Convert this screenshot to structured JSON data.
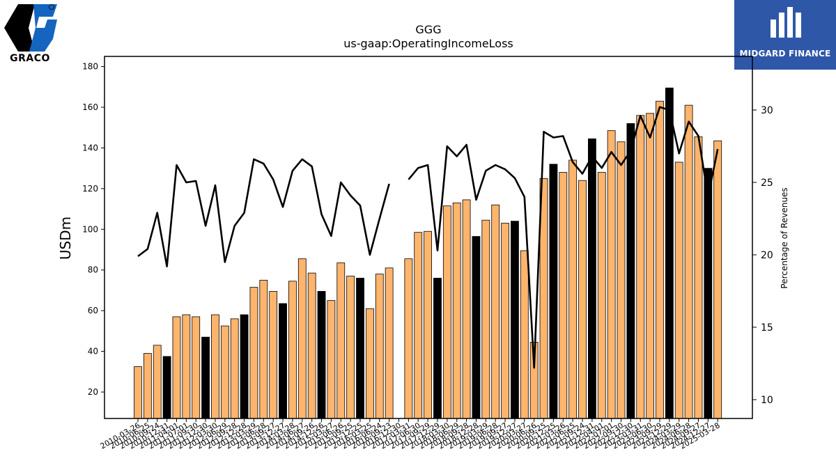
{
  "logos": {
    "left": {
      "name": "GRACO"
    },
    "right": {
      "name": "MIDGARD FINANCE"
    }
  },
  "chart_data": {
    "type": "bar",
    "title": "GGG",
    "subtitle": "us-gaap:OperatingIncomeLoss",
    "ylabel": "USDm",
    "y2label": "Percentage of Revenues",
    "ylim": [
      7,
      185
    ],
    "y2lim": [
      8.7,
      33.7
    ],
    "yticks": [
      20,
      40,
      60,
      80,
      100,
      120,
      140,
      160,
      180
    ],
    "y2ticks": [
      10,
      15,
      20,
      25,
      30
    ],
    "colors": {
      "quarter": "#fdb46c",
      "fiscal_year_end": "#000000",
      "line": "#000000"
    },
    "categories": [
      "2010-03-26",
      "2010-06-25",
      "2010-09-24",
      "2010-12-31",
      "2011-04-01",
      "2011-07-01",
      "2011-09-30",
      "2011-12-30",
      "2012-03-30",
      "2012-06-29",
      "2012-09-28",
      "2012-12-28",
      "2013-03-29",
      "2013-06-28",
      "2013-09-27",
      "2013-12-27",
      "2014-03-28",
      "2014-06-27",
      "2014-09-26",
      "2014-12-26",
      "2015-03-27",
      "2015-06-26",
      "2015-09-25",
      "2015-12-25",
      "2016-03-25",
      "2016-06-24",
      "2016-09-23",
      "2016-12-30",
      "2017-03-31",
      "2017-06-30",
      "2017-09-29",
      "2017-12-29",
      "2018-03-30",
      "2018-06-29",
      "2018-09-28",
      "2018-12-28",
      "2019-03-29",
      "2019-06-28",
      "2019-09-27",
      "2019-12-27",
      "2020-03-27",
      "2020-06-26",
      "2020-09-25",
      "2020-12-25",
      "2021-03-26",
      "2021-06-25",
      "2021-09-24",
      "2021-12-31",
      "2022-04-01",
      "2022-07-01",
      "2022-09-30",
      "2022-12-30",
      "2023-03-31",
      "2023-06-30",
      "2023-09-29",
      "2023-12-29",
      "2024-03-29",
      "2024-06-28",
      "2024-09-27",
      "2024-12-27",
      "2025-03-28"
    ],
    "tick_labels": [
      "2010-03-26",
      "2010-06-25",
      "2010-09-24",
      "2010-12-31",
      "2011-04-01",
      "2011-07-01",
      "2011-09-30",
      "2011-12-30",
      "2012-03-30",
      "2012-06-29",
      "2012-09-28",
      "2012-12-28",
      "2013-03-29",
      "2013-06-28",
      "2013-09-27",
      "2013-12-27",
      "2014-03-28",
      "2014-06-27",
      "2014-09-26",
      "2014-12-26",
      "2015-03-27",
      "2015-06-26",
      "2015-09-25",
      "2015-12-25",
      "2016-03-25",
      "2016-06-24",
      "2016-09-23",
      "2016-12-30",
      "2017-03-31",
      "2017-06-30",
      "2017-09-29",
      "2017-12-29",
      "2018-03-30",
      "2018-06-29",
      "2018-09-28",
      "2018-12-28",
      "2019-03-29",
      "2019-06-28",
      "2019-09-27",
      "2019-12-27",
      "2020-03-27",
      "2020-06-26",
      "2020-09-25",
      "2020-12-25",
      "2021-03-26",
      "2021-06-25",
      "2021-09-24",
      "2021-12-31",
      "2022-04-01",
      "2022-07-01",
      "2022-09-30",
      "2022-12-30",
      "2023-03-31",
      "2023-06-30",
      "2023-09-29",
      "2023-12-29",
      "2024-03-29",
      "2024-06-28",
      "2024-09-27",
      "2024-12-27",
      "2025-03-28"
    ],
    "bars": [
      32.5,
      39,
      43,
      37.5,
      57,
      58,
      57,
      47,
      58,
      52.5,
      56,
      58,
      71.5,
      75,
      69.5,
      63.5,
      74.5,
      85.5,
      78.5,
      69.5,
      65,
      83.5,
      77,
      76,
      61,
      78,
      81,
      0,
      85.5,
      98.5,
      99,
      76,
      111.5,
      113,
      114.5,
      96.5,
      104.5,
      112,
      103,
      104,
      89.5,
      44.5,
      125,
      132,
      128,
      134,
      124,
      144.5,
      128,
      148.5,
      143,
      152,
      156,
      157,
      163,
      169.5,
      133,
      161,
      145.5,
      130,
      143.5
    ],
    "highlight": [
      false,
      false,
      false,
      true,
      false,
      false,
      false,
      true,
      false,
      false,
      false,
      true,
      false,
      false,
      false,
      true,
      false,
      false,
      false,
      true,
      false,
      false,
      false,
      true,
      false,
      false,
      false,
      true,
      false,
      false,
      false,
      true,
      false,
      false,
      false,
      true,
      false,
      false,
      false,
      true,
      false,
      false,
      false,
      true,
      false,
      false,
      false,
      true,
      false,
      false,
      false,
      true,
      false,
      false,
      false,
      true,
      false,
      false,
      false,
      true,
      false
    ],
    "line": [
      19.9,
      20.4,
      22.9,
      19.2,
      26.2,
      25,
      25.1,
      22,
      24.8,
      19.5,
      22,
      22.9,
      26.6,
      26.3,
      25.2,
      23.3,
      25.8,
      26.6,
      26.1,
      22.8,
      21.3,
      25,
      24.1,
      23.4,
      20,
      22.5,
      24.9,
      null,
      25.2,
      26,
      26.2,
      20.3,
      27.5,
      26.8,
      27.6,
      23.8,
      25.8,
      26.2,
      25.9,
      25.3,
      24,
      12.2,
      28.5,
      28.1,
      28.2,
      26.4,
      25.6,
      26.8,
      26,
      27.1,
      26.2,
      27.2,
      29.6,
      28.1,
      30.2,
      30,
      27,
      29.2,
      28.2,
      24,
      27.3
    ]
  }
}
